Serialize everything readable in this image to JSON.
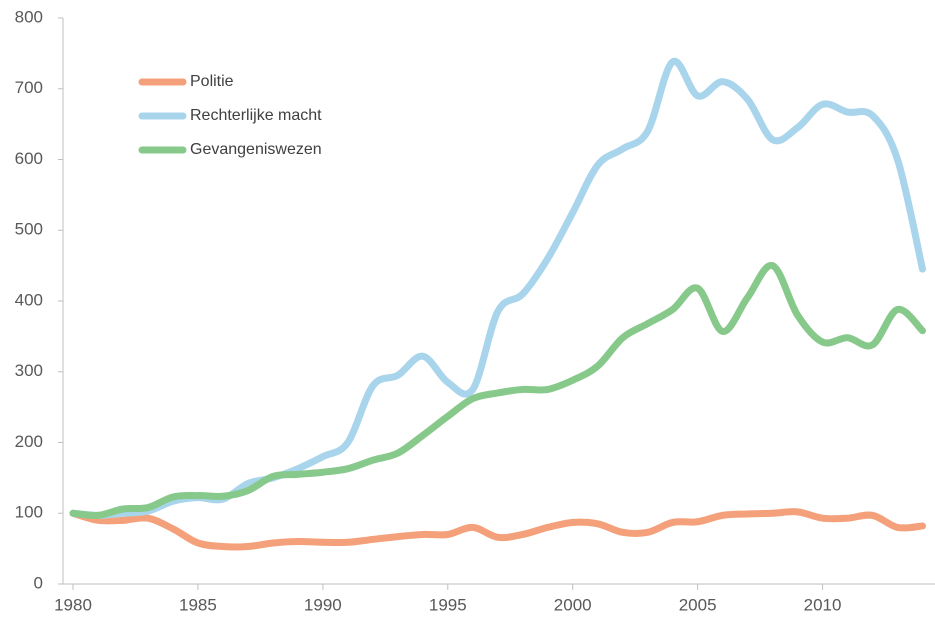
{
  "chart_data": {
    "type": "line",
    "x": [
      1980,
      1981,
      1982,
      1983,
      1984,
      1985,
      1986,
      1987,
      1988,
      1989,
      1990,
      1991,
      1992,
      1993,
      1994,
      1995,
      1996,
      1997,
      1998,
      1999,
      2000,
      2001,
      2002,
      2003,
      2004,
      2005,
      2006,
      2007,
      2008,
      2009,
      2010,
      2011,
      2012,
      2013,
      2014
    ],
    "series": [
      {
        "name": "Politie",
        "color": "#f4a07a",
        "values": [
          100,
          90,
          90,
          93,
          78,
          58,
          53,
          53,
          58,
          60,
          59,
          59,
          63,
          67,
          70,
          70,
          80,
          66,
          70,
          80,
          87,
          85,
          73,
          73,
          87,
          88,
          97,
          99,
          100,
          102,
          93,
          93,
          97,
          80,
          82
        ]
      },
      {
        "name": "Rechterlijke macht",
        "color": "#a8d4ec",
        "values": [
          100,
          97,
          100,
          103,
          117,
          122,
          120,
          142,
          150,
          163,
          180,
          200,
          280,
          295,
          322,
          285,
          275,
          385,
          410,
          460,
          525,
          592,
          615,
          640,
          738,
          690,
          710,
          685,
          628,
          645,
          678,
          667,
          662,
          600,
          445
        ]
      },
      {
        "name": "Gevangeniswezen",
        "color": "#86c98a",
        "values": [
          100,
          97,
          106,
          108,
          123,
          125,
          124,
          132,
          152,
          155,
          158,
          163,
          175,
          185,
          210,
          237,
          262,
          270,
          275,
          275,
          288,
          308,
          348,
          368,
          388,
          418,
          357,
          405,
          450,
          380,
          342,
          348,
          338,
          388,
          358
        ]
      }
    ],
    "xlim": [
      1979.6,
      2014.5
    ],
    "xticks": [
      1980,
      1985,
      1990,
      1995,
      2000,
      2005,
      2010
    ],
    "ylim": [
      0,
      800
    ],
    "yticks": [
      0,
      100,
      200,
      300,
      400,
      500,
      600,
      700,
      800
    ],
    "legend": "top-left"
  }
}
